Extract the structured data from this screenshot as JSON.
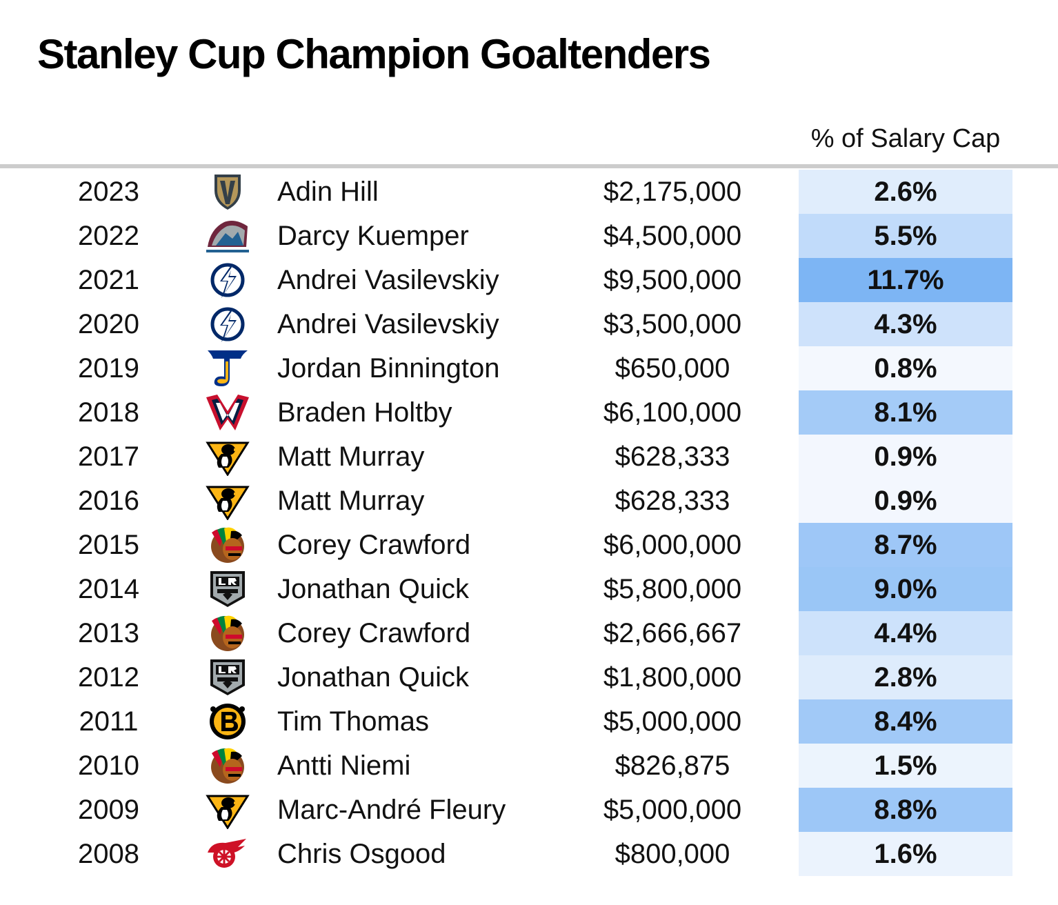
{
  "title": "Stanley Cup Champion Goaltenders",
  "column_header": "% of Salary Cap",
  "colors": {
    "pct_scale_low": "#f4f8fe",
    "pct_scale_high": "#7db5f4",
    "rule": "#cccccc"
  },
  "chart_data": {
    "type": "table",
    "title": "Stanley Cup Champion Goaltenders",
    "columns": [
      "",
      "",
      "",
      "",
      "% of Salary Cap"
    ],
    "rows": [
      {
        "year": "2023",
        "team_icon": "golden-knights-logo-icon",
        "goalie": "Adin Hill",
        "salary": "$2,175,000",
        "pct_label": "2.6%",
        "pct": 2.6
      },
      {
        "year": "2022",
        "team_icon": "avalanche-logo-icon",
        "goalie": "Darcy Kuemper",
        "salary": "$4,500,000",
        "pct_label": "5.5%",
        "pct": 5.5
      },
      {
        "year": "2021",
        "team_icon": "lightning-logo-icon",
        "goalie": "Andrei Vasilevskiy",
        "salary": "$9,500,000",
        "pct_label": "11.7%",
        "pct": 11.7
      },
      {
        "year": "2020",
        "team_icon": "lightning-logo-icon",
        "goalie": "Andrei Vasilevskiy",
        "salary": "$3,500,000",
        "pct_label": "4.3%",
        "pct": 4.3
      },
      {
        "year": "2019",
        "team_icon": "blues-logo-icon",
        "goalie": "Jordan Binnington",
        "salary": "$650,000",
        "pct_label": "0.8%",
        "pct": 0.8
      },
      {
        "year": "2018",
        "team_icon": "capitals-logo-icon",
        "goalie": "Braden Holtby",
        "salary": "$6,100,000",
        "pct_label": "8.1%",
        "pct": 8.1
      },
      {
        "year": "2017",
        "team_icon": "penguins-logo-icon",
        "goalie": "Matt Murray",
        "salary": "$628,333",
        "pct_label": "0.9%",
        "pct": 0.9
      },
      {
        "year": "2016",
        "team_icon": "penguins-logo-icon",
        "goalie": "Matt Murray",
        "salary": "$628,333",
        "pct_label": "0.9%",
        "pct": 0.9
      },
      {
        "year": "2015",
        "team_icon": "blackhawks-logo-icon",
        "goalie": "Corey Crawford",
        "salary": "$6,000,000",
        "pct_label": "8.7%",
        "pct": 8.7
      },
      {
        "year": "2014",
        "team_icon": "kings-logo-icon",
        "goalie": "Jonathan Quick",
        "salary": "$5,800,000",
        "pct_label": "9.0%",
        "pct": 9.0
      },
      {
        "year": "2013",
        "team_icon": "blackhawks-logo-icon",
        "goalie": "Corey Crawford",
        "salary": "$2,666,667",
        "pct_label": "4.4%",
        "pct": 4.4
      },
      {
        "year": "2012",
        "team_icon": "kings-logo-icon",
        "goalie": "Jonathan Quick",
        "salary": "$1,800,000",
        "pct_label": "2.8%",
        "pct": 2.8
      },
      {
        "year": "2011",
        "team_icon": "bruins-logo-icon",
        "goalie": "Tim Thomas",
        "salary": "$5,000,000",
        "pct_label": "8.4%",
        "pct": 8.4
      },
      {
        "year": "2010",
        "team_icon": "blackhawks-logo-icon",
        "goalie": "Antti Niemi",
        "salary": "$826,875",
        "pct_label": "1.5%",
        "pct": 1.5
      },
      {
        "year": "2009",
        "team_icon": "penguins-logo-icon",
        "goalie": "Marc-André Fleury",
        "salary": "$5,000,000",
        "pct_label": "8.8%",
        "pct": 8.8
      },
      {
        "year": "2008",
        "team_icon": "red-wings-logo-icon",
        "goalie": "Chris Osgood",
        "salary": "$800,000",
        "pct_label": "1.6%",
        "pct": 1.6
      }
    ]
  }
}
